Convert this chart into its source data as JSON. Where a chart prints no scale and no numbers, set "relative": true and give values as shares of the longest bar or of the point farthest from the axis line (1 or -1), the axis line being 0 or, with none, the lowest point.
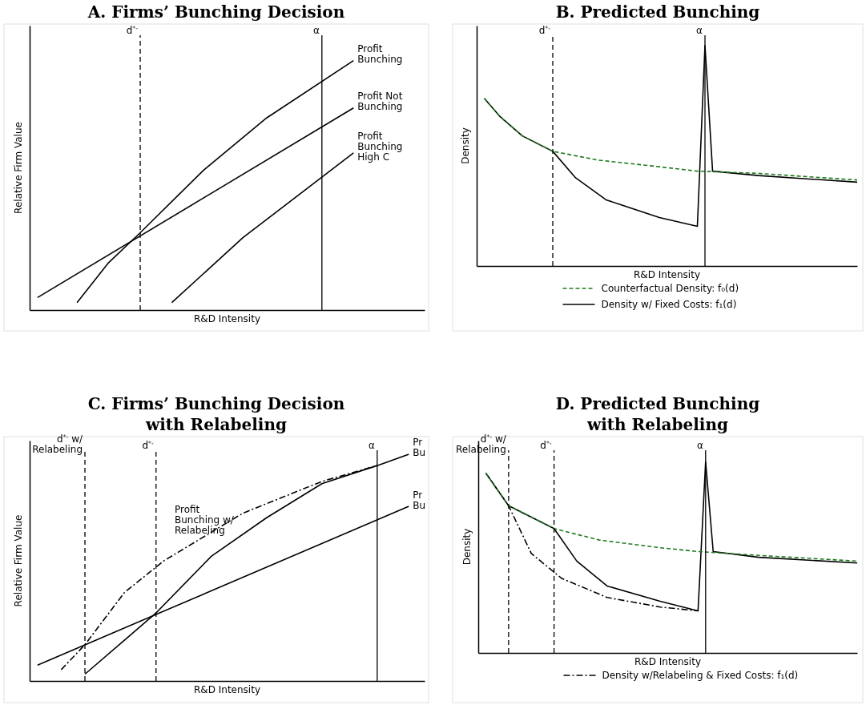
{
  "chart_data": [
    {
      "type": "line",
      "title": "A. Firms’ Bunching Decision",
      "xlabel": "R&D Intensity",
      "ylabel": "Relative Firm Value",
      "relative": true,
      "legend": false,
      "categories": [
        null,
        null,
        null,
        null,
        null,
        null,
        null,
        null,
        null,
        null,
        null,
        null,
        null,
        null,
        null,
        null,
        null,
        null,
        null,
        null,
        null,
        null,
        null,
        null,
        null,
        null,
        null,
        null,
        null,
        null,
        null,
        null,
        null,
        null,
        null,
        null,
        null,
        null,
        null,
        null,
        null,
        null,
        null,
        null,
        null,
        null,
        null,
        null,
        null,
        null,
        null
      ],
      "series": [
        {
          "name": "Profit\nBunching",
          "color": "#000000",
          "values": [
            null,
            null,
            null,
            null,
            null,
            null,
            0.03,
            null,
            null,
            null,
            0.19,
            null,
            null,
            null,
            0.31,
            null,
            null,
            null,
            null,
            null,
            null,
            null,
            0.56,
            null,
            null,
            null,
            null,
            null,
            null,
            null,
            0.77,
            null,
            null,
            null,
            null,
            null,
            null,
            null,
            null,
            null,
            null,
            1.0,
            null,
            null,
            null,
            null,
            null,
            null,
            null,
            null,
            null
          ]
        },
        {
          "name": "Profit Not\nBunching",
          "color": "#000000",
          "values": [
            null,
            0.05,
            null,
            null,
            null,
            null,
            null,
            null,
            null,
            null,
            null,
            null,
            null,
            null,
            null,
            null,
            null,
            null,
            null,
            null,
            null,
            null,
            null,
            null,
            null,
            null,
            null,
            null,
            null,
            null,
            null,
            null,
            null,
            null,
            null,
            null,
            null,
            null,
            null,
            null,
            null,
            0.81,
            null,
            null,
            null,
            null,
            null,
            null,
            null,
            null,
            null
          ]
        },
        {
          "name": "Profit\nBunching\nHigh C",
          "color": "#000000",
          "values": [
            null,
            null,
            null,
            null,
            null,
            null,
            null,
            null,
            null,
            null,
            null,
            null,
            null,
            null,
            null,
            null,
            null,
            null,
            0.03,
            null,
            null,
            null,
            null,
            null,
            null,
            null,
            null,
            0.29,
            null,
            null,
            null,
            null,
            null,
            null,
            null,
            null,
            null,
            null,
            null,
            null,
            null,
            0.63,
            null,
            null,
            null,
            null,
            null,
            null,
            null,
            null,
            null
          ]
        }
      ],
      "annotations": [
        "d$^{*-}$",
        "α"
      ]
    },
    {
      "type": "line",
      "title": "B. Predicted Bunching",
      "xlabel": "R&D Intensity",
      "ylabel": "Density",
      "relative": true,
      "legend": "bottom",
      "categories": [
        null,
        null,
        null,
        null,
        null,
        null,
        null,
        null,
        null,
        null,
        null,
        null,
        null,
        null,
        null,
        null,
        null,
        null,
        null,
        null,
        null,
        null,
        null,
        null,
        null,
        null,
        null,
        null,
        null,
        null,
        null,
        null,
        null,
        null,
        null,
        null,
        null,
        null,
        null,
        null,
        null,
        null,
        null,
        null,
        null,
        null,
        null,
        null,
        null,
        null,
        null
      ],
      "series": [
        {
          "name": "Counterfactual Density: f₀(d)",
          "color": "#1f7a1f",
          "line_style": "dashed",
          "values": [
            null,
            0.76,
            null,
            0.68,
            null,
            null,
            0.59,
            null,
            null,
            null,
            0.52,
            null,
            null,
            null,
            null,
            null,
            0.48,
            null,
            null,
            null,
            null,
            null,
            null,
            null,
            0.45,
            null,
            null,
            null,
            null,
            0.43,
            null,
            null,
            null,
            null,
            null,
            null,
            null,
            0.42,
            null,
            null,
            null,
            null,
            null,
            null,
            null,
            null,
            null,
            null,
            null,
            null,
            0.39
          ]
        },
        {
          "name": "Density w/ Fixed Costs: f₁(d)",
          "color": "#000000",
          "line_style": "solid",
          "values": [
            null,
            0.76,
            null,
            0.68,
            null,
            null,
            0.59,
            null,
            null,
            null,
            0.52,
            null,
            null,
            0.4,
            null,
            null,
            null,
            0.3,
            null,
            null,
            null,
            null,
            null,
            null,
            0.22,
            null,
            null,
            null,
            null,
            0.18,
            1.0,
            0.43,
            null,
            null,
            null,
            null,
            null,
            0.41,
            null,
            null,
            null,
            null,
            null,
            null,
            null,
            null,
            null,
            null,
            null,
            null,
            0.38
          ]
        }
      ],
      "annotations": [
        "d$^{*-}$",
        "α"
      ]
    },
    {
      "type": "line",
      "title": "C. Firms’ Bunching Decision\nwith Relabeling",
      "xlabel": "R&D Intensity",
      "ylabel": "Relative Firm Value",
      "relative": true,
      "legend": false,
      "categories": [
        null,
        null,
        null,
        null,
        null,
        null,
        null,
        null,
        null,
        null,
        null,
        null,
        null,
        null,
        null,
        null,
        null,
        null,
        null,
        null,
        null,
        null,
        null,
        null,
        null,
        null,
        null,
        null,
        null,
        null,
        null,
        null,
        null,
        null,
        null,
        null,
        null,
        null,
        null,
        null,
        null,
        null,
        null,
        null,
        null,
        null,
        null,
        null,
        null,
        null,
        null
      ],
      "series": [
        {
          "name": "Pr\nBu",
          "color": "#000000",
          "line_style": "solid",
          "values": [
            null,
            null,
            null,
            null,
            null,
            null,
            null,
            0.03,
            null,
            null,
            null,
            null,
            0.18,
            null,
            null,
            null,
            0.3,
            null,
            null,
            null,
            null,
            null,
            null,
            0.55,
            null,
            null,
            null,
            null,
            null,
            null,
            0.72,
            null,
            null,
            null,
            null,
            null,
            null,
            0.87,
            null,
            null,
            null,
            null,
            null,
            null,
            0.95,
            null,
            null,
            null,
            1.0,
            null,
            null
          ]
        },
        {
          "name": "Pr\nBu",
          "color": "#000000",
          "line_style": "solid",
          "values": [
            null,
            0.07,
            null,
            null,
            null,
            null,
            null,
            null,
            null,
            null,
            null,
            null,
            null,
            null,
            null,
            null,
            null,
            null,
            null,
            null,
            null,
            null,
            null,
            null,
            null,
            null,
            null,
            null,
            null,
            null,
            null,
            null,
            null,
            null,
            null,
            null,
            null,
            null,
            null,
            null,
            null,
            null,
            null,
            null,
            null,
            null,
            null,
            null,
            0.77,
            null,
            null
          ]
        },
        {
          "color": "#000000",
          "line_style": "dashdot",
          "values": [
            null,
            null,
            null,
            null,
            0.05,
            null,
            null,
            0.16,
            null,
            null,
            null,
            null,
            0.39,
            null,
            null,
            null,
            null,
            0.53,
            null,
            null,
            null,
            null,
            null,
            null,
            null,
            null,
            null,
            0.74,
            null,
            null,
            null,
            null,
            null,
            null,
            null,
            null,
            null,
            0.88,
            null,
            null,
            null,
            null,
            null,
            null,
            0.95,
            null,
            null,
            null,
            null,
            null,
            null
          ]
        }
      ],
      "annotations": [
        "Profit\nBunching w/\nRelabeling",
        "d$^{*-}$ w/\nRelabeling",
        "d$^{*-}$",
        "α"
      ]
    },
    {
      "type": "line",
      "title": "D. Predicted Bunching\nwith Relabeling",
      "xlabel": "R&D Intensity",
      "ylabel": "Density",
      "relative": true,
      "legend": "bottom",
      "categories": [
        null,
        null,
        null,
        null,
        null,
        null,
        null,
        null,
        null,
        null,
        null,
        null,
        null,
        null,
        null,
        null,
        null,
        null,
        null,
        null,
        null,
        null,
        null,
        null,
        null,
        null,
        null,
        null,
        null,
        null,
        null,
        null,
        null,
        null,
        null,
        null,
        null,
        null,
        null,
        null,
        null,
        null,
        null,
        null,
        null,
        null,
        null,
        null,
        null,
        null,
        null
      ],
      "series": [
        {
          "color": "#1f7a1f",
          "line_style": "dashed",
          "values": [
            null,
            0.94,
            null,
            null,
            0.77,
            null,
            null,
            0.71,
            null,
            null,
            0.65,
            null,
            null,
            null,
            null,
            null,
            0.59,
            null,
            null,
            null,
            null,
            null,
            null,
            null,
            0.55,
            null,
            null,
            null,
            null,
            0.53,
            null,
            null,
            null,
            null,
            null,
            null,
            null,
            0.51,
            null,
            null,
            null,
            null,
            null,
            null,
            null,
            null,
            null,
            null,
            null,
            null,
            0.48
          ]
        },
        {
          "color": "#000000",
          "line_style": "solid",
          "values": [
            null,
            0.94,
            null,
            null,
            0.77,
            null,
            null,
            0.71,
            null,
            null,
            0.65,
            null,
            null,
            0.48,
            null,
            null,
            null,
            0.35,
            null,
            null,
            null,
            null,
            null,
            null,
            0.27,
            null,
            null,
            null,
            null,
            0.22,
            1.0,
            0.53,
            null,
            null,
            null,
            null,
            null,
            0.5,
            null,
            null,
            null,
            null,
            null,
            null,
            null,
            null,
            null,
            null,
            null,
            null,
            0.47
          ]
        },
        {
          "name": "Density w/Relabeling & Fixed Costs: f₁(d)",
          "color": "#000000",
          "line_style": "dashdot",
          "values": [
            null,
            0.94,
            null,
            null,
            0.77,
            null,
            null,
            0.52,
            null,
            null,
            null,
            0.39,
            null,
            null,
            null,
            null,
            null,
            0.29,
            null,
            null,
            null,
            null,
            null,
            null,
            0.24,
            null,
            null,
            null,
            null,
            0.22,
            null,
            null,
            null,
            null,
            null,
            null,
            null,
            null,
            null,
            null,
            null,
            null,
            null,
            null,
            null,
            null,
            null,
            null,
            null,
            null,
            null
          ]
        }
      ],
      "annotations": [
        "d$^{*-}$ w/\nRelabeling",
        "d$^{*-}$",
        "α"
      ]
    }
  ]
}
